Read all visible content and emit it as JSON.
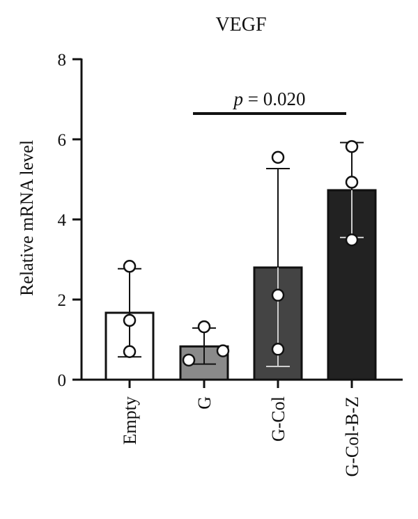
{
  "chart_data": {
    "type": "bar",
    "title": "VEGF",
    "ylabel": "Relative mRNA level",
    "xlabel": "",
    "ylim": [
      0,
      8
    ],
    "yticks": [
      0,
      2,
      4,
      6,
      8
    ],
    "categories": [
      "Empty",
      "G",
      "G-Col",
      "G-Col-B-Z"
    ],
    "values": [
      1.67,
      0.83,
      2.8,
      4.73
    ],
    "error_upper": [
      2.77,
      1.29,
      5.27,
      5.92
    ],
    "error_lower": [
      0.57,
      0.39,
      0.33,
      3.55
    ],
    "points": [
      [
        2.83,
        1.48,
        0.7
      ],
      [
        1.32,
        0.49,
        0.72
      ],
      [
        5.55,
        2.11,
        0.76
      ],
      [
        5.82,
        4.93,
        3.49
      ]
    ],
    "bar_colors": [
      "#ffffff",
      "#8a8a8a",
      "#444444",
      "#222222"
    ],
    "annotation": {
      "p_symbol": "p",
      "text": " = 0.020",
      "from_category": "G",
      "to_category": "G-Col-B-Z"
    },
    "grid": false,
    "legend": "none"
  }
}
